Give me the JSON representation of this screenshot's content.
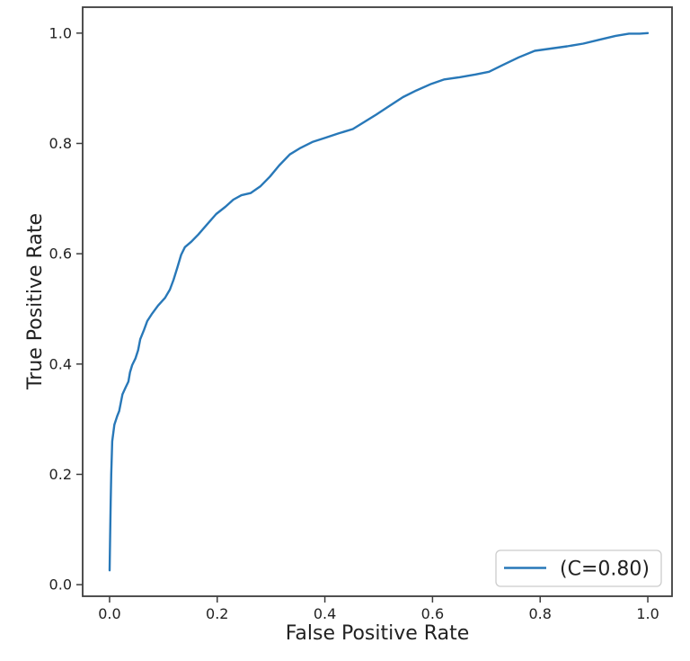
{
  "chart_data": {
    "type": "line",
    "title": "",
    "xlabel": "False Positive Rate",
    "ylabel": "True Positive Rate",
    "xlim": [
      -0.05,
      1.045
    ],
    "ylim": [
      -0.021,
      1.047
    ],
    "xticks": [
      0.0,
      0.2,
      0.4,
      0.6,
      0.8,
      1.0
    ],
    "yticks": [
      0.0,
      0.2,
      0.4,
      0.6,
      0.8,
      1.0
    ],
    "tick_format_decimals": 1,
    "grid": false,
    "legend": {
      "position": "lower right",
      "entries": [
        {
          "label": "(C=0.80)",
          "color": "#2878b8"
        }
      ]
    },
    "series": [
      {
        "name": "(C=0.80)",
        "color": "#2878b8",
        "points": [
          [
            0.0,
            0.026
          ],
          [
            0.001,
            0.09
          ],
          [
            0.002,
            0.15
          ],
          [
            0.003,
            0.2
          ],
          [
            0.005,
            0.26
          ],
          [
            0.009,
            0.29
          ],
          [
            0.014,
            0.305
          ],
          [
            0.018,
            0.315
          ],
          [
            0.021,
            0.33
          ],
          [
            0.024,
            0.345
          ],
          [
            0.03,
            0.358
          ],
          [
            0.035,
            0.368
          ],
          [
            0.038,
            0.385
          ],
          [
            0.042,
            0.398
          ],
          [
            0.048,
            0.41
          ],
          [
            0.053,
            0.425
          ],
          [
            0.057,
            0.445
          ],
          [
            0.064,
            0.462
          ],
          [
            0.07,
            0.478
          ],
          [
            0.078,
            0.49
          ],
          [
            0.09,
            0.506
          ],
          [
            0.103,
            0.52
          ],
          [
            0.112,
            0.535
          ],
          [
            0.119,
            0.553
          ],
          [
            0.126,
            0.575
          ],
          [
            0.133,
            0.598
          ],
          [
            0.14,
            0.612
          ],
          [
            0.152,
            0.622
          ],
          [
            0.165,
            0.635
          ],
          [
            0.18,
            0.652
          ],
          [
            0.198,
            0.672
          ],
          [
            0.215,
            0.685
          ],
          [
            0.23,
            0.698
          ],
          [
            0.245,
            0.706
          ],
          [
            0.262,
            0.71
          ],
          [
            0.28,
            0.722
          ],
          [
            0.298,
            0.74
          ],
          [
            0.315,
            0.76
          ],
          [
            0.335,
            0.78
          ],
          [
            0.355,
            0.792
          ],
          [
            0.378,
            0.803
          ],
          [
            0.4,
            0.81
          ],
          [
            0.425,
            0.818
          ],
          [
            0.452,
            0.826
          ],
          [
            0.475,
            0.84
          ],
          [
            0.495,
            0.852
          ],
          [
            0.52,
            0.868
          ],
          [
            0.545,
            0.884
          ],
          [
            0.57,
            0.896
          ],
          [
            0.598,
            0.908
          ],
          [
            0.622,
            0.916
          ],
          [
            0.65,
            0.92
          ],
          [
            0.68,
            0.925
          ],
          [
            0.705,
            0.93
          ],
          [
            0.73,
            0.942
          ],
          [
            0.76,
            0.956
          ],
          [
            0.79,
            0.968
          ],
          [
            0.82,
            0.972
          ],
          [
            0.85,
            0.976
          ],
          [
            0.88,
            0.981
          ],
          [
            0.91,
            0.988
          ],
          [
            0.94,
            0.995
          ],
          [
            0.965,
            0.999
          ],
          [
            0.985,
            0.999
          ],
          [
            1.0,
            1.0
          ]
        ]
      }
    ]
  },
  "colors": {
    "curve": "#2878b8",
    "spine": "#3d3d3d",
    "tick_text": "#222222",
    "legend_border": "#cccccc",
    "background": "#ffffff"
  }
}
